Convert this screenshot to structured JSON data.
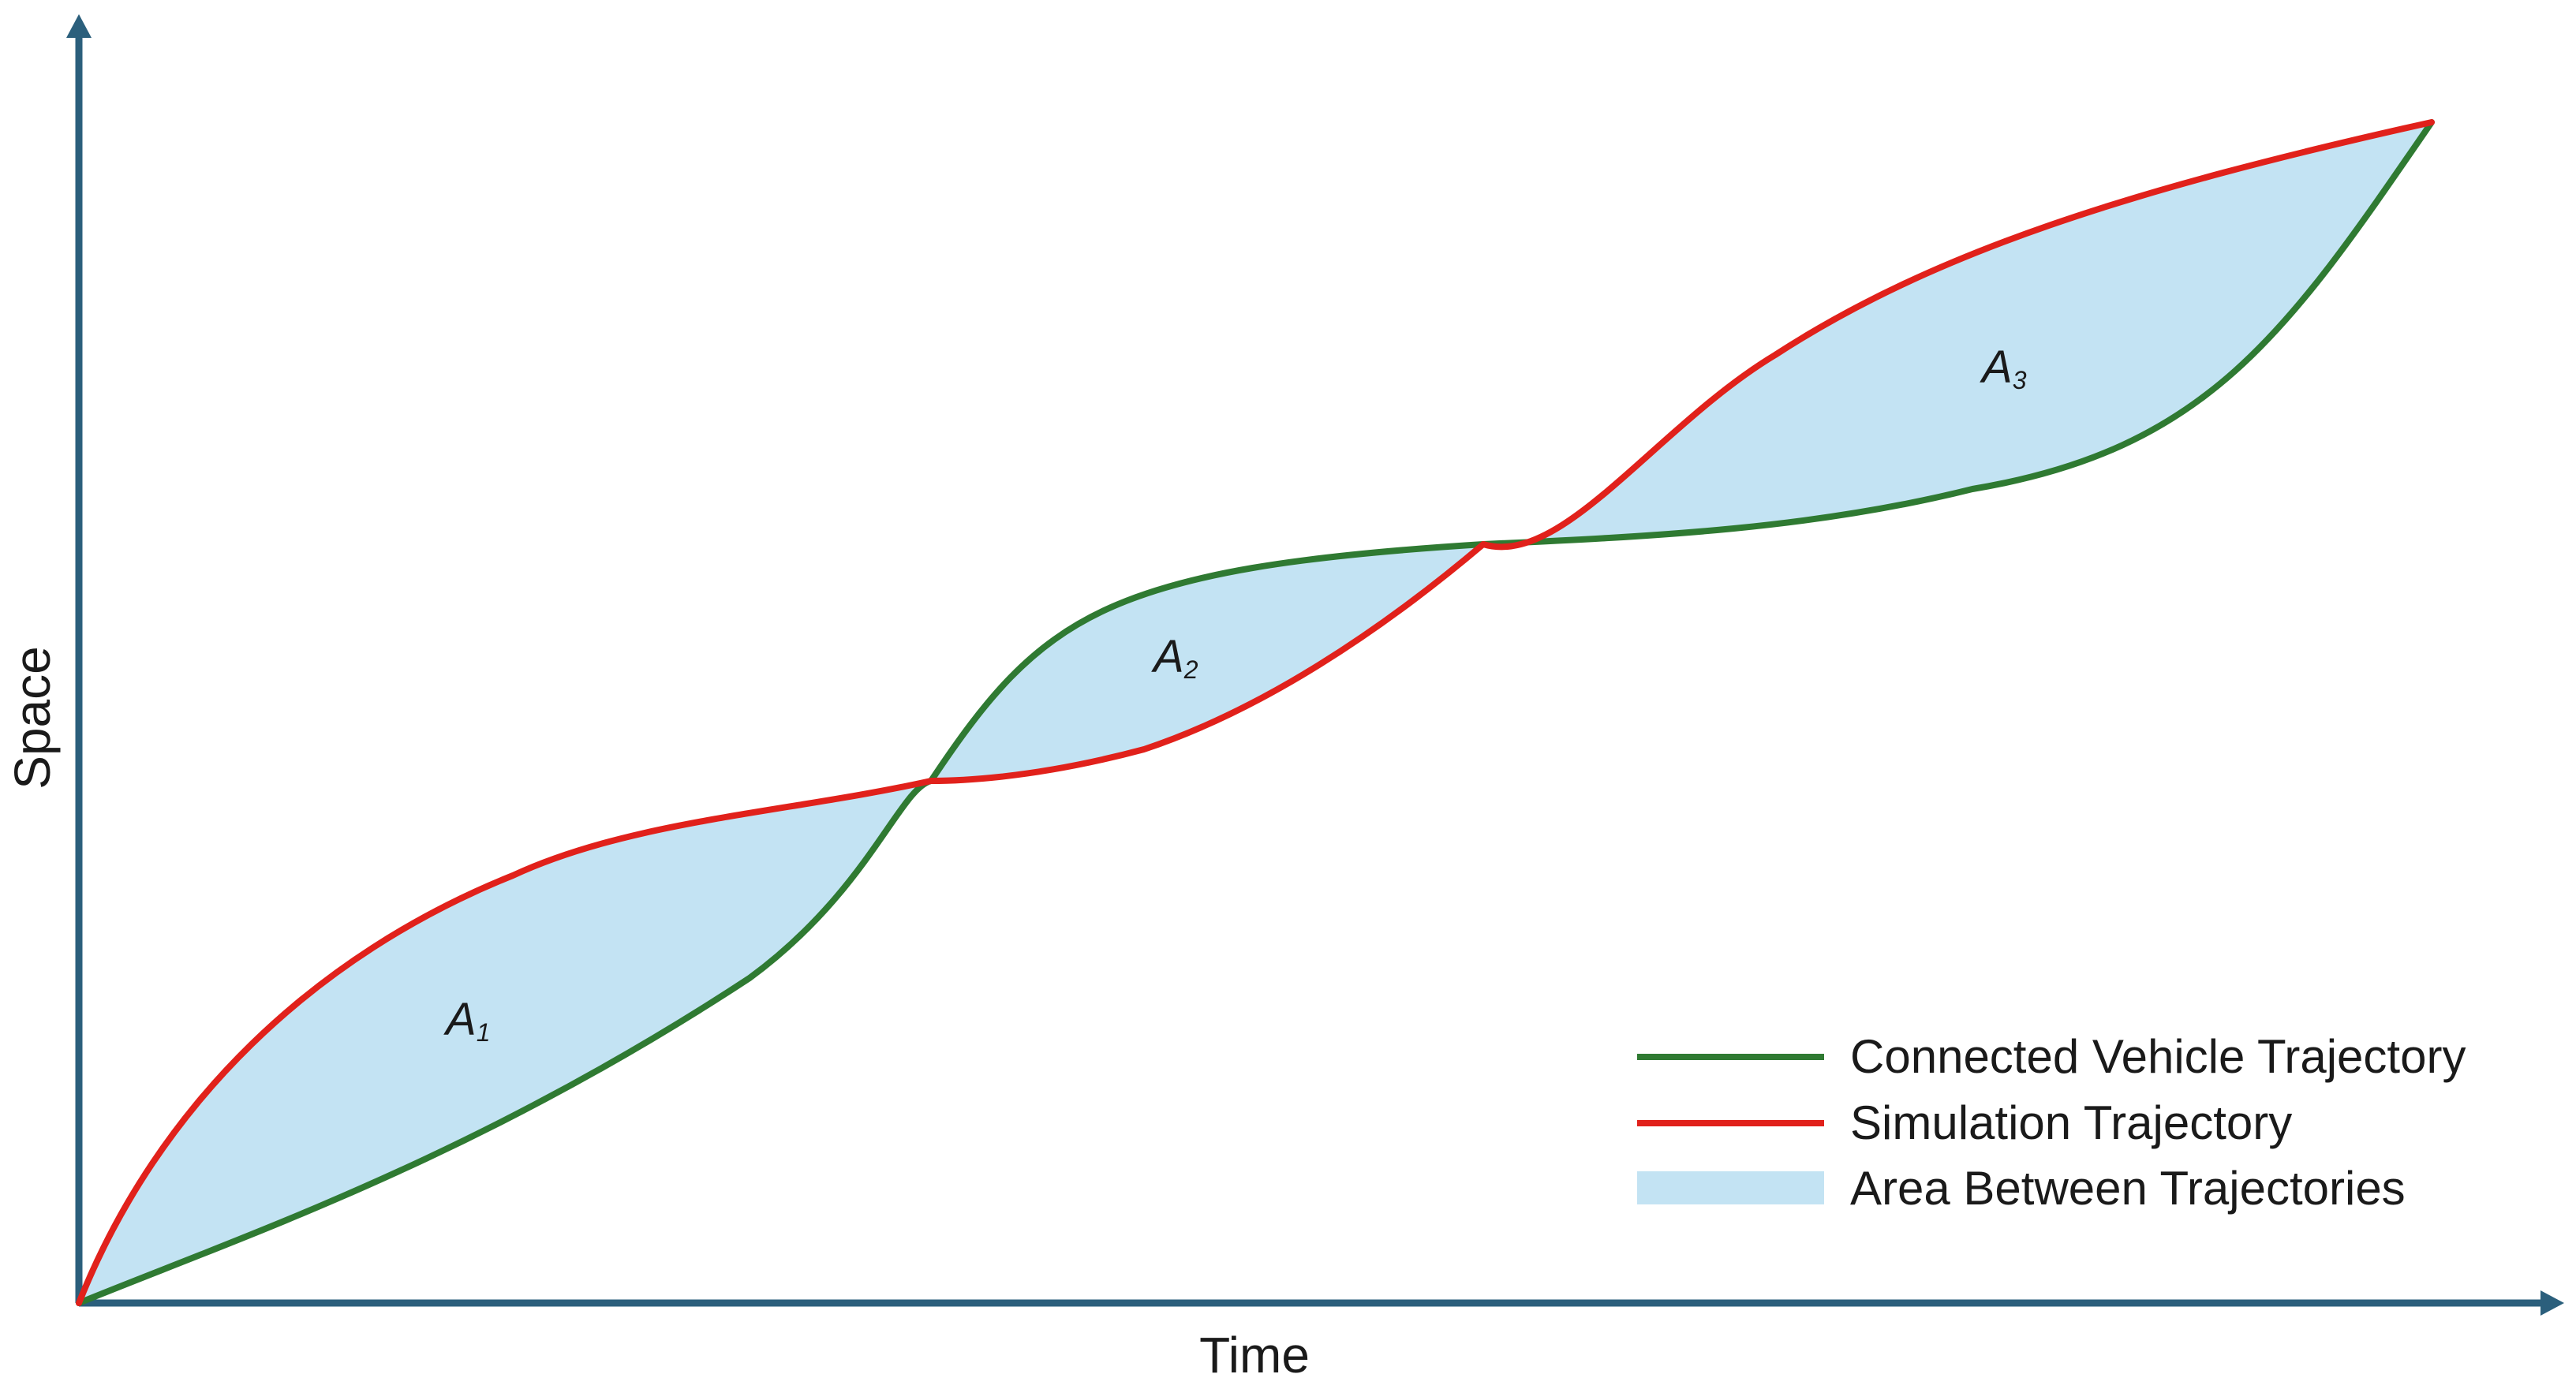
{
  "axes": {
    "x_label": "Time",
    "y_label": "Space"
  },
  "areas": [
    {
      "label": "A",
      "subscript": "1"
    },
    {
      "label": "A",
      "subscript": "2"
    },
    {
      "label": "A",
      "subscript": "3"
    }
  ],
  "legend": {
    "items": [
      {
        "label": "Connected Vehicle Trajectory",
        "color": "#2f7a32",
        "kind": "line"
      },
      {
        "label": "Simulation Trajectory",
        "color": "#e1211b",
        "kind": "line"
      },
      {
        "label": "Area Between Trajectories",
        "color": "#c3e3f3",
        "kind": "patch"
      }
    ]
  },
  "colors": {
    "axis": "#2b5f7c",
    "connected_vehicle": "#2f7a32",
    "simulation": "#e1211b",
    "area_fill": "#c3e3f3"
  }
}
